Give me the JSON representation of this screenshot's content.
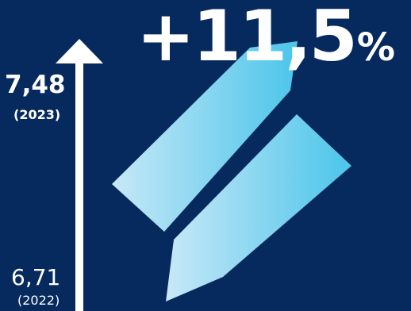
{
  "headline": {
    "change": "+11,5",
    "unit": "%"
  },
  "start": {
    "value": "6,71",
    "year": "(2022)"
  },
  "end": {
    "value": "7,48",
    "year": "(2023)"
  },
  "colors": {
    "background": "#072a5e",
    "text": "#ffffff",
    "pencil_light": "#b7e1f5",
    "pencil_dark": "#49c2e8"
  },
  "icons": [
    "up-arrow-icon",
    "pencil-icon"
  ]
}
